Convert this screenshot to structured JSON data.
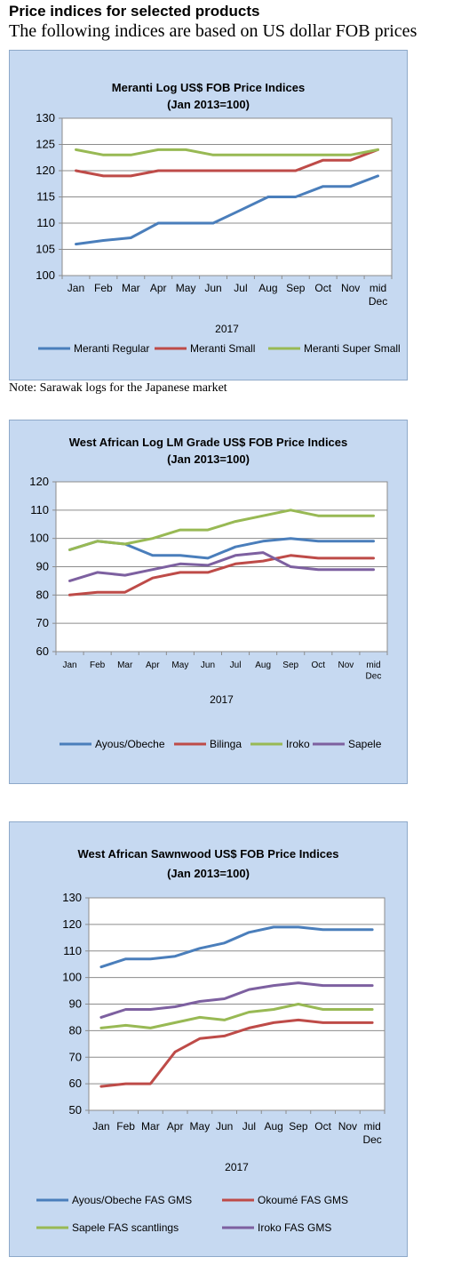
{
  "page": {
    "heading": "Price indices for selected products",
    "subheading": "The following indices are based on US dollar FOB prices",
    "note": "Note: Sarawak logs for the Japanese market"
  },
  "chart_data": [
    {
      "type": "line",
      "title": "Meranti Log US$ FOB Price Indices",
      "subtitle": "(Jan 2013=100)",
      "xlabel": "2017",
      "categories": [
        "Jan",
        "Feb",
        "Mar",
        "Apr",
        "May",
        "Jun",
        "Jul",
        "Aug",
        "Sep",
        "Oct",
        "Nov",
        "mid Dec"
      ],
      "ylim": [
        100,
        130
      ],
      "yticks": [
        100,
        105,
        110,
        115,
        120,
        125,
        130
      ],
      "grid": true,
      "legend": "bottom",
      "series": [
        {
          "name": "Meranti Regular",
          "color": "#4a7ebb",
          "values": [
            106,
            106.7,
            107.2,
            110,
            110,
            110,
            112.5,
            115,
            115,
            117,
            117,
            119
          ]
        },
        {
          "name": "Meranti Small",
          "color": "#be4b48",
          "values": [
            120,
            119,
            119,
            120,
            120,
            120,
            120,
            120,
            120,
            122,
            122,
            124
          ]
        },
        {
          "name": "Meranti Super Small",
          "color": "#98b954",
          "values": [
            124,
            123,
            123,
            124,
            124,
            123,
            123,
            123,
            123,
            123,
            123,
            124
          ]
        }
      ]
    },
    {
      "type": "line",
      "title": "West African Log LM Grade US$ FOB Price Indices",
      "subtitle": "(Jan 2013=100)",
      "xlabel": "2017",
      "categories": [
        "Jan",
        "Feb",
        "Mar",
        "Apr",
        "May",
        "Jun",
        "Jul",
        "Aug",
        "Sep",
        "Oct",
        "Nov",
        "mid Dec"
      ],
      "ylim": [
        60,
        120
      ],
      "yticks": [
        60,
        70,
        80,
        90,
        100,
        110,
        120
      ],
      "grid": true,
      "legend": "bottom",
      "series": [
        {
          "name": "Ayous/Obeche",
          "color": "#4a7ebb",
          "values": [
            96,
            99,
            98,
            94,
            94,
            93,
            97,
            99,
            100,
            99,
            99,
            99
          ]
        },
        {
          "name": "Bilinga",
          "color": "#be4b48",
          "values": [
            80,
            81,
            81,
            86,
            88,
            88,
            91,
            92,
            94,
            93,
            93,
            93
          ]
        },
        {
          "name": "Iroko",
          "color": "#98b954",
          "values": [
            96,
            99,
            98,
            100,
            103,
            103,
            106,
            108,
            110,
            108,
            108,
            108
          ]
        },
        {
          "name": "Sapele",
          "color": "#7d60a0",
          "values": [
            85,
            88,
            87,
            89,
            91,
            90.5,
            94,
            95,
            90,
            89,
            89,
            89
          ]
        }
      ]
    },
    {
      "type": "line",
      "title": "West African Sawnwood US$ FOB Price Indices",
      "subtitle": "(Jan 2013=100)",
      "xlabel": "2017",
      "categories": [
        "Jan",
        "Feb",
        "Mar",
        "Apr",
        "May",
        "Jun",
        "Jul",
        "Aug",
        "Sep",
        "Oct",
        "Nov",
        "mid Dec"
      ],
      "ylim": [
        50,
        130
      ],
      "yticks": [
        50,
        60,
        70,
        80,
        90,
        100,
        110,
        120,
        130
      ],
      "grid": true,
      "legend": "bottom",
      "series": [
        {
          "name": "Ayous/Obeche  FAS GMS",
          "color": "#4a7ebb",
          "values": [
            104,
            107,
            107,
            108,
            111,
            113,
            117,
            119,
            119,
            118,
            118,
            118
          ]
        },
        {
          "name": "Okoumé  FAS GMS",
          "color": "#be4b48",
          "values": [
            59,
            60,
            60,
            72,
            77,
            78,
            81,
            83,
            84,
            83,
            83,
            83
          ]
        },
        {
          "name": "Sapele FAS scantlings",
          "color": "#98b954",
          "values": [
            81,
            82,
            81,
            83,
            85,
            84,
            87,
            88,
            90,
            88,
            88,
            88
          ]
        },
        {
          "name": "Iroko FAS GMS",
          "color": "#7d60a0",
          "values": [
            85,
            88,
            88,
            89,
            91,
            92,
            95.5,
            97,
            98,
            97,
            97,
            97
          ]
        }
      ]
    }
  ]
}
